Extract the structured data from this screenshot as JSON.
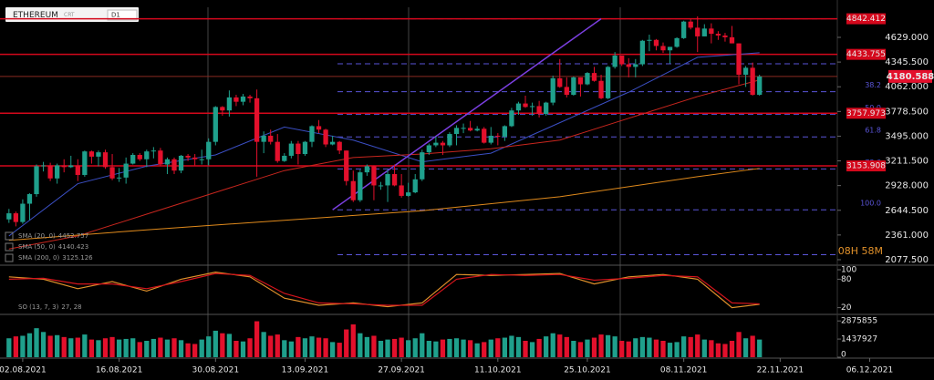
{
  "chart_data": {
    "type": "candlestick",
    "symbol": "ETHEREUM",
    "symbol_tag": "CRT",
    "timeframe": "D1",
    "timer": "08H 58M",
    "up_color": "#1fa08c",
    "down_color": "#e3102c",
    "xlim": [
      -1.3,
      120.3
    ],
    "xticks": [
      {
        "value": 2,
        "label": "02.08.2021"
      },
      {
        "value": 16,
        "label": "16.08.2021"
      },
      {
        "value": 30,
        "label": "30.08.2021"
      },
      {
        "value": 43,
        "label": "13.09.2021"
      },
      {
        "value": 57,
        "label": "27.09.2021"
      },
      {
        "value": 71,
        "label": "11.10.2021"
      },
      {
        "value": 84,
        "label": "25.10.2021"
      },
      {
        "value": 98,
        "label": "08.11.2021"
      },
      {
        "value": 112,
        "label": "22.11.2021"
      },
      {
        "value": 125,
        "label": "06.12.2021"
      }
    ],
    "ylim": [
      2025,
      4974
    ],
    "yticks": [
      {
        "value": 4629,
        "label": "4629.000"
      },
      {
        "value": 4345.5,
        "label": "4345.500"
      },
      {
        "value": 4062,
        "label": "4062.000"
      },
      {
        "value": 3778.5,
        "label": "3778.500"
      },
      {
        "value": 3495,
        "label": "3495.000"
      },
      {
        "value": 3211.5,
        "label": "3211.500"
      },
      {
        "value": 2928,
        "label": "2928.000"
      },
      {
        "value": 2644.5,
        "label": "2644.500"
      },
      {
        "value": 2361,
        "label": "2361.000"
      },
      {
        "value": 2077.5,
        "label": "2077.500"
      }
    ],
    "open": [
      2540,
      2610,
      2510,
      2720,
      2830,
      3150,
      3160,
      3010,
      3160,
      3140,
      3160,
      3050,
      3320,
      3260,
      3310,
      3140,
      3010,
      3020,
      3180,
      3280,
      3230,
      3320,
      3330,
      3170,
      3230,
      3100,
      3270,
      3250,
      3230,
      3230,
      3430,
      3830,
      3790,
      3940,
      3890,
      3950,
      3930,
      3430,
      3500,
      3430,
      3210,
      3270,
      3410,
      3290,
      3430,
      3610,
      3570,
      3400,
      3430,
      3330,
      2980,
      2760,
      3080,
      3150,
      2930,
      2930,
      3060,
      2930,
      2810,
      2850,
      3000,
      3310,
      3390,
      3420,
      3390,
      3520,
      3590,
      3590,
      3560,
      3580,
      3420,
      3500,
      3490,
      3610,
      3790,
      3870,
      3830,
      3840,
      3750,
      3880,
      4160,
      4060,
      3970,
      4170,
      4090,
      4220,
      4130,
      3930,
      4290,
      4420,
      4320,
      4290,
      4320,
      4590,
      4600,
      4530,
      4480,
      4520,
      4620,
      4810,
      4740,
      4640,
      4730,
      4670,
      4650,
      4630,
      4560,
      4200,
      4280,
      3970
    ],
    "high": [
      2660,
      2630,
      2770,
      2840,
      3170,
      3200,
      3190,
      3180,
      3230,
      3270,
      3230,
      3330,
      3330,
      3330,
      3340,
      3290,
      3130,
      3250,
      3300,
      3300,
      3340,
      3370,
      3360,
      3250,
      3250,
      3280,
      3290,
      3290,
      3340,
      3470,
      3840,
      3840,
      4020,
      3970,
      3980,
      3970,
      4030,
      3550,
      3570,
      3520,
      3300,
      3440,
      3440,
      3440,
      3620,
      3680,
      3580,
      3500,
      3440,
      3330,
      3100,
      3110,
      3170,
      3160,
      2970,
      3110,
      3170,
      3060,
      2960,
      3060,
      3340,
      3410,
      3490,
      3440,
      3540,
      3620,
      3640,
      3670,
      3610,
      3600,
      3600,
      3530,
      3620,
      3820,
      3890,
      3960,
      3880,
      3900,
      3890,
      4190,
      4380,
      4170,
      4180,
      4170,
      4230,
      4290,
      4200,
      4300,
      4460,
      4420,
      4390,
      4380,
      4600,
      4660,
      4610,
      4570,
      4520,
      4630,
      4820,
      4840,
      4870,
      4780,
      4790,
      4700,
      4680,
      4760,
      4560,
      4300,
      4340,
      4200
    ],
    "low": [
      2500,
      2460,
      2490,
      2530,
      2800,
      3090,
      2980,
      2950,
      3080,
      3130,
      2980,
      3030,
      3180,
      3150,
      3120,
      2990,
      2970,
      2950,
      3170,
      3210,
      3140,
      3240,
      3150,
      3060,
      3060,
      3070,
      3210,
      3160,
      3170,
      3160,
      3390,
      3730,
      3720,
      3840,
      3850,
      3880,
      3030,
      3300,
      3400,
      3190,
      3200,
      3240,
      3170,
      3270,
      3370,
      3530,
      3370,
      3390,
      3290,
      2930,
      2740,
      2740,
      3040,
      2760,
      2880,
      2740,
      2920,
      2790,
      2800,
      2840,
      2980,
      3280,
      3370,
      3280,
      3370,
      3390,
      3530,
      3550,
      3550,
      3410,
      3400,
      3390,
      3440,
      3600,
      3740,
      3820,
      3730,
      3710,
      3730,
      3850,
      4050,
      3940,
      3960,
      3950,
      4080,
      4120,
      3920,
      3920,
      4270,
      4300,
      4170,
      4170,
      4300,
      4470,
      4480,
      4450,
      4330,
      4510,
      4610,
      4720,
      4460,
      4640,
      4560,
      4600,
      4580,
      4560,
      4090,
      4060,
      3960,
      3960
    ],
    "close": [
      2610,
      2510,
      2720,
      2830,
      3150,
      3160,
      3010,
      3160,
      3140,
      3160,
      3050,
      3320,
      3260,
      3310,
      3140,
      3010,
      3020,
      3180,
      3280,
      3230,
      3320,
      3330,
      3170,
      3230,
      3100,
      3270,
      3250,
      3230,
      3230,
      3430,
      3830,
      3790,
      3940,
      3890,
      3950,
      3930,
      3430,
      3500,
      3430,
      3210,
      3270,
      3410,
      3290,
      3430,
      3610,
      3570,
      3400,
      3430,
      3330,
      2980,
      2760,
      3080,
      3150,
      2930,
      2930,
      3060,
      2930,
      2810,
      2850,
      3000,
      3310,
      3390,
      3420,
      3390,
      3520,
      3590,
      3590,
      3560,
      3580,
      3420,
      3500,
      3490,
      3610,
      3790,
      3870,
      3830,
      3840,
      3750,
      3880,
      4160,
      4060,
      3970,
      4170,
      4090,
      4220,
      4130,
      3930,
      4290,
      4420,
      4320,
      4290,
      4320,
      4590,
      4600,
      4530,
      4480,
      4520,
      4620,
      4810,
      4740,
      4640,
      4730,
      4670,
      4650,
      4630,
      4560,
      4200,
      4280,
      3970,
      4180
    ],
    "levels": [
      4842.412,
      4433.755,
      3757.973,
      3153.908
    ],
    "level_color": "#d4081c",
    "last_price": 4180.588,
    "fib": {
      "color": "#5a55d8",
      "values": [
        4842,
        4325,
        4005,
        3746,
        3487,
        3119,
        2650,
        2135
      ],
      "labels": [
        null,
        null,
        "38.2",
        "50.0",
        "61.8",
        "78.6",
        "100.0",
        null
      ]
    },
    "trendline": {
      "color": "#7b3fe0",
      "x": [
        47,
        86
      ],
      "values": [
        2650,
        4842
      ]
    },
    "series": [
      {
        "name": "SMA (20, 0)",
        "last": 4452.757,
        "color": "#3b4fc4",
        "x": [
          0,
          10,
          20,
          30,
          40,
          50,
          60,
          70,
          80,
          90,
          100,
          109
        ],
        "values": [
          2350,
          2950,
          3150,
          3280,
          3600,
          3450,
          3200,
          3300,
          3650,
          4000,
          4400,
          4453
        ]
      },
      {
        "name": "SMA (50, 0)",
        "last": 4140.423,
        "color": "#c8261e",
        "x": [
          0,
          10,
          20,
          30,
          40,
          50,
          60,
          70,
          80,
          90,
          100,
          109
        ],
        "values": [
          2200,
          2350,
          2600,
          2850,
          3100,
          3250,
          3290,
          3350,
          3450,
          3700,
          3950,
          4140
        ]
      },
      {
        "name": "SMA (200, 0)",
        "last": 3125.126,
        "color": "#e08a1c",
        "x": [
          0,
          20,
          40,
          60,
          80,
          100,
          109
        ],
        "values": [
          2300,
          2420,
          2530,
          2640,
          2800,
          3030,
          3125
        ]
      }
    ],
    "stochastic": {
      "name": "SO (13, 7, 3)",
      "readout": "27, 28",
      "ylim": [
        0,
        100
      ],
      "yticks": [
        100,
        80,
        20
      ],
      "x": [
        0,
        5,
        10,
        15,
        20,
        25,
        30,
        35,
        40,
        45,
        50,
        55,
        60,
        65,
        70,
        75,
        80,
        85,
        90,
        95,
        100,
        105,
        109
      ],
      "series": [
        {
          "color": "#e0902a",
          "values": [
            85,
            80,
            60,
            75,
            55,
            80,
            95,
            85,
            40,
            25,
            30,
            22,
            30,
            90,
            88,
            90,
            92,
            70,
            85,
            90,
            80,
            20,
            27
          ]
        },
        {
          "color": "#d4141c",
          "values": [
            80,
            82,
            70,
            70,
            60,
            75,
            92,
            88,
            50,
            30,
            28,
            25,
            25,
            80,
            90,
            88,
            90,
            78,
            82,
            88,
            85,
            30,
            28
          ]
        }
      ]
    },
    "volume": {
      "ylim": [
        0,
        3250000
      ],
      "yticks": [
        2875855,
        1437927,
        0
      ],
      "values": [
        1500000,
        1650000,
        1700000,
        1900000,
        2300000,
        2000000,
        1700000,
        1750000,
        1600000,
        1500000,
        1550000,
        1800000,
        1400000,
        1350000,
        1500000,
        1600000,
        1400000,
        1450000,
        1500000,
        1200000,
        1300000,
        1450000,
        1550000,
        1400000,
        1500000,
        1350000,
        1100000,
        1050000,
        1400000,
        1650000,
        2100000,
        1900000,
        1850000,
        1300000,
        1250000,
        1500000,
        2850000,
        2000000,
        1700000,
        1800000,
        1350000,
        1250000,
        1600000,
        1500000,
        1650000,
        1550000,
        1500000,
        1200000,
        1150000,
        2200000,
        2600000,
        1900000,
        1600000,
        1700000,
        1300000,
        1400000,
        1450000,
        1550000,
        1350000,
        1500000,
        1900000,
        1300000,
        1250000,
        1400000,
        1450000,
        1500000,
        1400000,
        1350000,
        1100000,
        1200000,
        1400000,
        1500000,
        1550000,
        1700000,
        1600000,
        1300000,
        1200000,
        1450000,
        1650000,
        1900000,
        1800000,
        1600000,
        1300000,
        1200000,
        1400000,
        1550000,
        1800000,
        1750000,
        1650000,
        1300000,
        1250000,
        1500000,
        1600000,
        1550000,
        1400000,
        1300000,
        1150000,
        1200000,
        1650000,
        1600000,
        1800000,
        1400000,
        1350000,
        1100000,
        1050000,
        1300000,
        2000000,
        1500000,
        1700000,
        1400000
      ]
    }
  }
}
